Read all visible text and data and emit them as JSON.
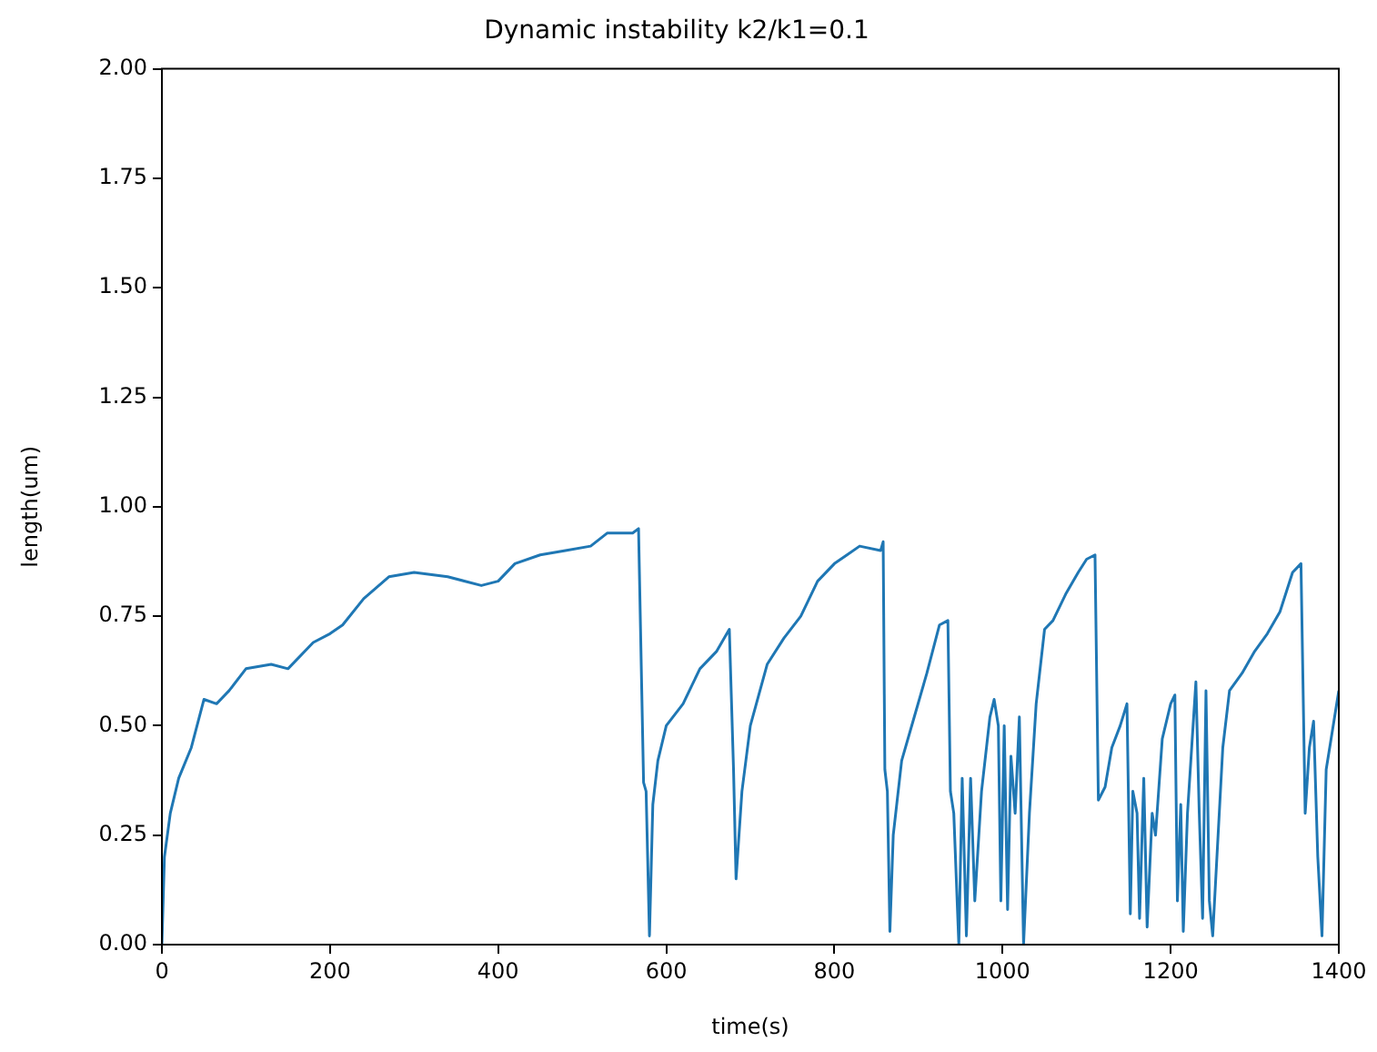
{
  "chart_data": {
    "type": "line",
    "title": "Dynamic instability k2/k1=0.1",
    "xlabel": "time(s)",
    "ylabel": "length(um)",
    "x": [
      0,
      3,
      10,
      20,
      35,
      50,
      65,
      80,
      100,
      130,
      150,
      180,
      200,
      215,
      240,
      270,
      300,
      340,
      380,
      400,
      420,
      450,
      480,
      510,
      530,
      560,
      567,
      573,
      576,
      580,
      584,
      590,
      600,
      620,
      640,
      660,
      675,
      680,
      683,
      690,
      700,
      720,
      740,
      760,
      780,
      800,
      815,
      830,
      855,
      858,
      860,
      863,
      866,
      870,
      880,
      895,
      910,
      925,
      935,
      938,
      942,
      948,
      952,
      957,
      962,
      967,
      975,
      985,
      990,
      995,
      998,
      1002,
      1006,
      1010,
      1015,
      1020,
      1025,
      1032,
      1040,
      1050,
      1060,
      1075,
      1090,
      1100,
      1110,
      1114,
      1122,
      1130,
      1140,
      1148,
      1152,
      1155,
      1160,
      1163,
      1168,
      1172,
      1178,
      1182,
      1190,
      1200,
      1205,
      1208,
      1212,
      1215,
      1220,
      1225,
      1230,
      1234,
      1238,
      1242,
      1246,
      1250,
      1255,
      1262,
      1270,
      1285,
      1300,
      1315,
      1330,
      1345,
      1355,
      1360,
      1365,
      1370,
      1375,
      1380,
      1385,
      1390,
      1400
    ],
    "series": [
      {
        "color": "#1f77b4",
        "values": [
          0,
          0.2,
          0.3,
          0.38,
          0.45,
          0.56,
          0.55,
          0.58,
          0.63,
          0.64,
          0.63,
          0.69,
          0.71,
          0.73,
          0.79,
          0.84,
          0.85,
          0.84,
          0.82,
          0.83,
          0.87,
          0.89,
          0.9,
          0.91,
          0.94,
          0.94,
          0.95,
          0.37,
          0.35,
          0.02,
          0.32,
          0.42,
          0.5,
          0.55,
          0.63,
          0.67,
          0.72,
          0.4,
          0.15,
          0.35,
          0.5,
          0.64,
          0.7,
          0.75,
          0.83,
          0.87,
          0.89,
          0.91,
          0.9,
          0.92,
          0.4,
          0.35,
          0.03,
          0.25,
          0.42,
          0.52,
          0.62,
          0.73,
          0.74,
          0.35,
          0.3,
          0,
          0.38,
          0.02,
          0.38,
          0.1,
          0.35,
          0.52,
          0.56,
          0.5,
          0.1,
          0.5,
          0.08,
          0.43,
          0.3,
          0.52,
          0,
          0.3,
          0.55,
          0.72,
          0.74,
          0.8,
          0.85,
          0.88,
          0.89,
          0.33,
          0.36,
          0.45,
          0.5,
          0.55,
          0.07,
          0.35,
          0.3,
          0.06,
          0.38,
          0.04,
          0.3,
          0.25,
          0.47,
          0.55,
          0.57,
          0.1,
          0.32,
          0.03,
          0.3,
          0.45,
          0.6,
          0.3,
          0.06,
          0.58,
          0.1,
          0.02,
          0.2,
          0.45,
          0.58,
          0.62,
          0.67,
          0.71,
          0.76,
          0.85,
          0.87,
          0.3,
          0.45,
          0.51,
          0.2,
          0.02,
          0.4,
          0.46,
          0.58
        ]
      }
    ],
    "xlim": [
      0,
      1400
    ],
    "xticks": [
      0,
      200,
      400,
      600,
      800,
      1000,
      1200,
      1400
    ],
    "ylim": [
      0,
      2
    ],
    "yticks": [
      {
        "value": 0,
        "label": "0.00"
      },
      {
        "value": 0.25,
        "label": "0.25"
      },
      {
        "value": 0.5,
        "label": "0.50"
      },
      {
        "value": 0.75,
        "label": "0.75"
      },
      {
        "value": 1,
        "label": "1.00"
      },
      {
        "value": 1.25,
        "label": "1.25"
      },
      {
        "value": 1.5,
        "label": "1.50"
      },
      {
        "value": 1.75,
        "label": "1.75"
      },
      {
        "value": 2,
        "label": "2.00"
      }
    ],
    "grid": false,
    "legend": false,
    "marker": "none",
    "line_style": "solid"
  }
}
